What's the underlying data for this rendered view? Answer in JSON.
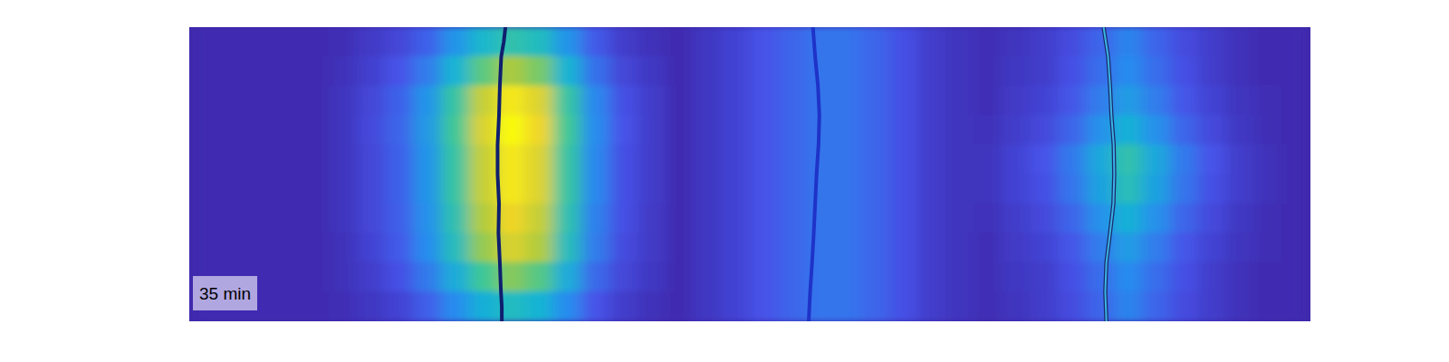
{
  "chart_data": {
    "type": "heatmap",
    "tick_labels": false,
    "xlim": [
      0,
      40
    ],
    "ylim": [
      10,
      0
    ],
    "color_range": [
      0,
      1
    ],
    "cells": [
      [
        0.02,
        0.02,
        0.02,
        0.02,
        0.02,
        0.03,
        0.07,
        0.11,
        0.19,
        0.33,
        0.47,
        0.55,
        0.5,
        0.33,
        0.17,
        0.08,
        0.04,
        0.02,
        0.06,
        0.1,
        0.15,
        0.2,
        0.24,
        0.24,
        0.2,
        0.14,
        0.08,
        0.05,
        0.03,
        0.05,
        0.08,
        0.13,
        0.2,
        0.28,
        0.2,
        0.13,
        0.08,
        0.04,
        0.02,
        0.02
      ],
      [
        0.02,
        0.02,
        0.02,
        0.02,
        0.02,
        0.04,
        0.09,
        0.15,
        0.26,
        0.45,
        0.64,
        0.75,
        0.68,
        0.45,
        0.23,
        0.11,
        0.06,
        0.02,
        0.06,
        0.1,
        0.15,
        0.2,
        0.24,
        0.24,
        0.2,
        0.14,
        0.08,
        0.05,
        0.03,
        0.06,
        0.08,
        0.14,
        0.22,
        0.3,
        0.22,
        0.14,
        0.08,
        0.04,
        0.02,
        0.02
      ],
      [
        0.02,
        0.02,
        0.02,
        0.02,
        0.02,
        0.05,
        0.11,
        0.19,
        0.33,
        0.57,
        0.81,
        0.95,
        0.86,
        0.57,
        0.29,
        0.14,
        0.08,
        0.02,
        0.06,
        0.1,
        0.15,
        0.2,
        0.24,
        0.24,
        0.2,
        0.14,
        0.08,
        0.05,
        0.03,
        0.07,
        0.1,
        0.16,
        0.26,
        0.36,
        0.26,
        0.16,
        0.1,
        0.05,
        0.03,
        0.02
      ],
      [
        0.02,
        0.02,
        0.02,
        0.02,
        0.02,
        0.05,
        0.12,
        0.2,
        0.35,
        0.6,
        0.85,
        1.0,
        0.9,
        0.6,
        0.3,
        0.15,
        0.08,
        0.02,
        0.06,
        0.1,
        0.15,
        0.2,
        0.24,
        0.24,
        0.2,
        0.14,
        0.08,
        0.05,
        0.04,
        0.08,
        0.12,
        0.2,
        0.32,
        0.44,
        0.32,
        0.2,
        0.12,
        0.06,
        0.03,
        0.02
      ],
      [
        0.02,
        0.02,
        0.02,
        0.02,
        0.02,
        0.05,
        0.11,
        0.19,
        0.33,
        0.57,
        0.81,
        0.95,
        0.86,
        0.57,
        0.29,
        0.14,
        0.08,
        0.02,
        0.06,
        0.1,
        0.15,
        0.2,
        0.24,
        0.24,
        0.2,
        0.14,
        0.08,
        0.05,
        0.05,
        0.1,
        0.15,
        0.25,
        0.4,
        0.55,
        0.4,
        0.25,
        0.15,
        0.08,
        0.04,
        0.02
      ],
      [
        0.02,
        0.02,
        0.02,
        0.02,
        0.02,
        0.05,
        0.11,
        0.19,
        0.33,
        0.57,
        0.81,
        0.95,
        0.86,
        0.57,
        0.29,
        0.14,
        0.08,
        0.02,
        0.06,
        0.1,
        0.15,
        0.2,
        0.24,
        0.24,
        0.2,
        0.14,
        0.08,
        0.05,
        0.05,
        0.1,
        0.14,
        0.24,
        0.38,
        0.52,
        0.38,
        0.24,
        0.14,
        0.08,
        0.04,
        0.02
      ],
      [
        0.02,
        0.02,
        0.02,
        0.02,
        0.02,
        0.05,
        0.11,
        0.18,
        0.32,
        0.54,
        0.77,
        0.9,
        0.81,
        0.54,
        0.27,
        0.14,
        0.07,
        0.02,
        0.06,
        0.1,
        0.15,
        0.2,
        0.24,
        0.24,
        0.2,
        0.14,
        0.08,
        0.05,
        0.04,
        0.08,
        0.12,
        0.2,
        0.32,
        0.44,
        0.32,
        0.2,
        0.12,
        0.06,
        0.03,
        0.02
      ],
      [
        0.02,
        0.02,
        0.02,
        0.02,
        0.02,
        0.04,
        0.1,
        0.17,
        0.3,
        0.51,
        0.72,
        0.85,
        0.77,
        0.51,
        0.26,
        0.13,
        0.07,
        0.02,
        0.06,
        0.1,
        0.15,
        0.2,
        0.24,
        0.24,
        0.2,
        0.14,
        0.08,
        0.05,
        0.03,
        0.07,
        0.1,
        0.16,
        0.26,
        0.36,
        0.26,
        0.16,
        0.1,
        0.05,
        0.03,
        0.02
      ],
      [
        0.02,
        0.02,
        0.02,
        0.02,
        0.02,
        0.04,
        0.08,
        0.14,
        0.25,
        0.42,
        0.6,
        0.7,
        0.63,
        0.42,
        0.21,
        0.11,
        0.06,
        0.02,
        0.06,
        0.1,
        0.15,
        0.2,
        0.24,
        0.24,
        0.2,
        0.14,
        0.08,
        0.05,
        0.03,
        0.06,
        0.08,
        0.14,
        0.22,
        0.3,
        0.22,
        0.14,
        0.08,
        0.04,
        0.02,
        0.02
      ],
      [
        0.02,
        0.02,
        0.02,
        0.02,
        0.02,
        0.03,
        0.06,
        0.1,
        0.18,
        0.3,
        0.43,
        0.5,
        0.45,
        0.3,
        0.15,
        0.08,
        0.04,
        0.02,
        0.06,
        0.1,
        0.15,
        0.2,
        0.24,
        0.24,
        0.2,
        0.14,
        0.08,
        0.05,
        0.03,
        0.05,
        0.08,
        0.13,
        0.2,
        0.28,
        0.2,
        0.13,
        0.08,
        0.04,
        0.02,
        0.02
      ]
    ],
    "series": [
      {
        "type": "line",
        "color": "#0f1f6e",
        "x": [
          11.28,
          11.22,
          11.13,
          11.08,
          11.05,
          11.0,
          11.0,
          11.05,
          11.03,
          11.08,
          11.12,
          11.15,
          11.15
        ],
        "y": [
          0,
          0.5,
          1,
          2,
          3,
          4,
          5,
          6,
          7,
          8,
          9,
          9.5,
          10
        ]
      },
      {
        "type": "line",
        "color": "#1f33c8",
        "x": [
          22.25,
          22.33,
          22.43,
          22.48,
          22.45,
          22.38,
          22.33,
          22.28,
          22.22,
          22.15,
          22.1
        ],
        "y": [
          0,
          1,
          2,
          3,
          4,
          5,
          6,
          7,
          8,
          9,
          10
        ]
      },
      {
        "type": "line",
        "color": "#3ab4e6",
        "x": [
          32.62,
          32.78,
          32.85,
          32.9,
          32.98,
          33.0,
          32.97,
          32.85,
          32.72,
          32.68,
          32.72
        ],
        "y": [
          0,
          1,
          2,
          3,
          4,
          5,
          6,
          7,
          8,
          9,
          10
        ]
      }
    ],
    "annotations": [
      {
        "text": "35 min"
      }
    ]
  }
}
